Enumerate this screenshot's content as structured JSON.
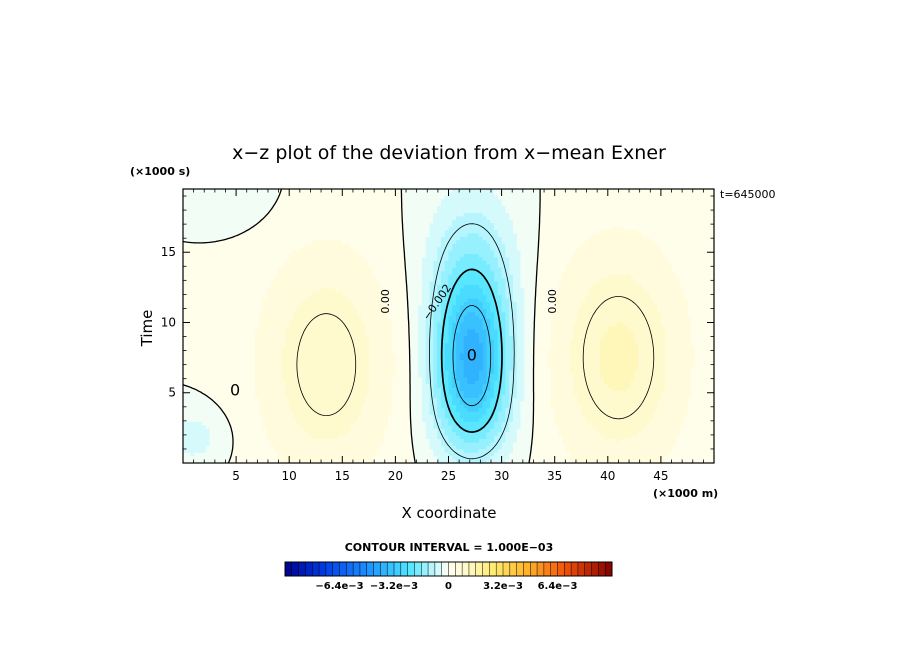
{
  "chart_data": {
    "type": "heatmap",
    "title": "x−z plot of the deviation from x−mean Exner",
    "xlabel": "X coordinate",
    "ylabel": "Time",
    "x_unit": "(×1000 m)",
    "y_unit": "(×1000 s)",
    "annotation": "t=645000",
    "xlim": [
      0,
      50
    ],
    "ylim": [
      0,
      19.5
    ],
    "x_ticks": [
      5,
      10,
      15,
      20,
      25,
      30,
      35,
      40,
      45
    ],
    "y_ticks": [
      5,
      10,
      15
    ],
    "contour_interval_text": "CONTOUR INTERVAL = 1.000E−03",
    "contour_labels": [
      {
        "text": "0.00",
        "x": 19.4,
        "y": 11.5
      },
      {
        "text": "0.00",
        "x": 35.1,
        "y": 11.5
      },
      {
        "text": "−0.002",
        "x": 24.2,
        "y": 11.3
      },
      {
        "text": "0",
        "x": 4.9,
        "y": 4.8
      },
      {
        "text": "0",
        "x": 27.2,
        "y": 7.3
      }
    ],
    "colorbar": {
      "range": [
        -0.0096,
        0.0096
      ],
      "tick_labels": [
        "−6.4e−3",
        "−3.2e−3",
        "0",
        "3.2e−3",
        "6.4e−3"
      ],
      "tick_values": [
        -0.0064,
        -0.0032,
        0,
        0.0032,
        0.0064
      ]
    },
    "field_summary": {
      "min_value": -0.0035,
      "min_location": {
        "x": 27.2,
        "y": 7.3
      },
      "positive_lobes": [
        {
          "x": 13.5,
          "y": 7,
          "value": 0.0012
        },
        {
          "x": 41,
          "y": 7.5,
          "value": 0.0013
        }
      ]
    }
  }
}
